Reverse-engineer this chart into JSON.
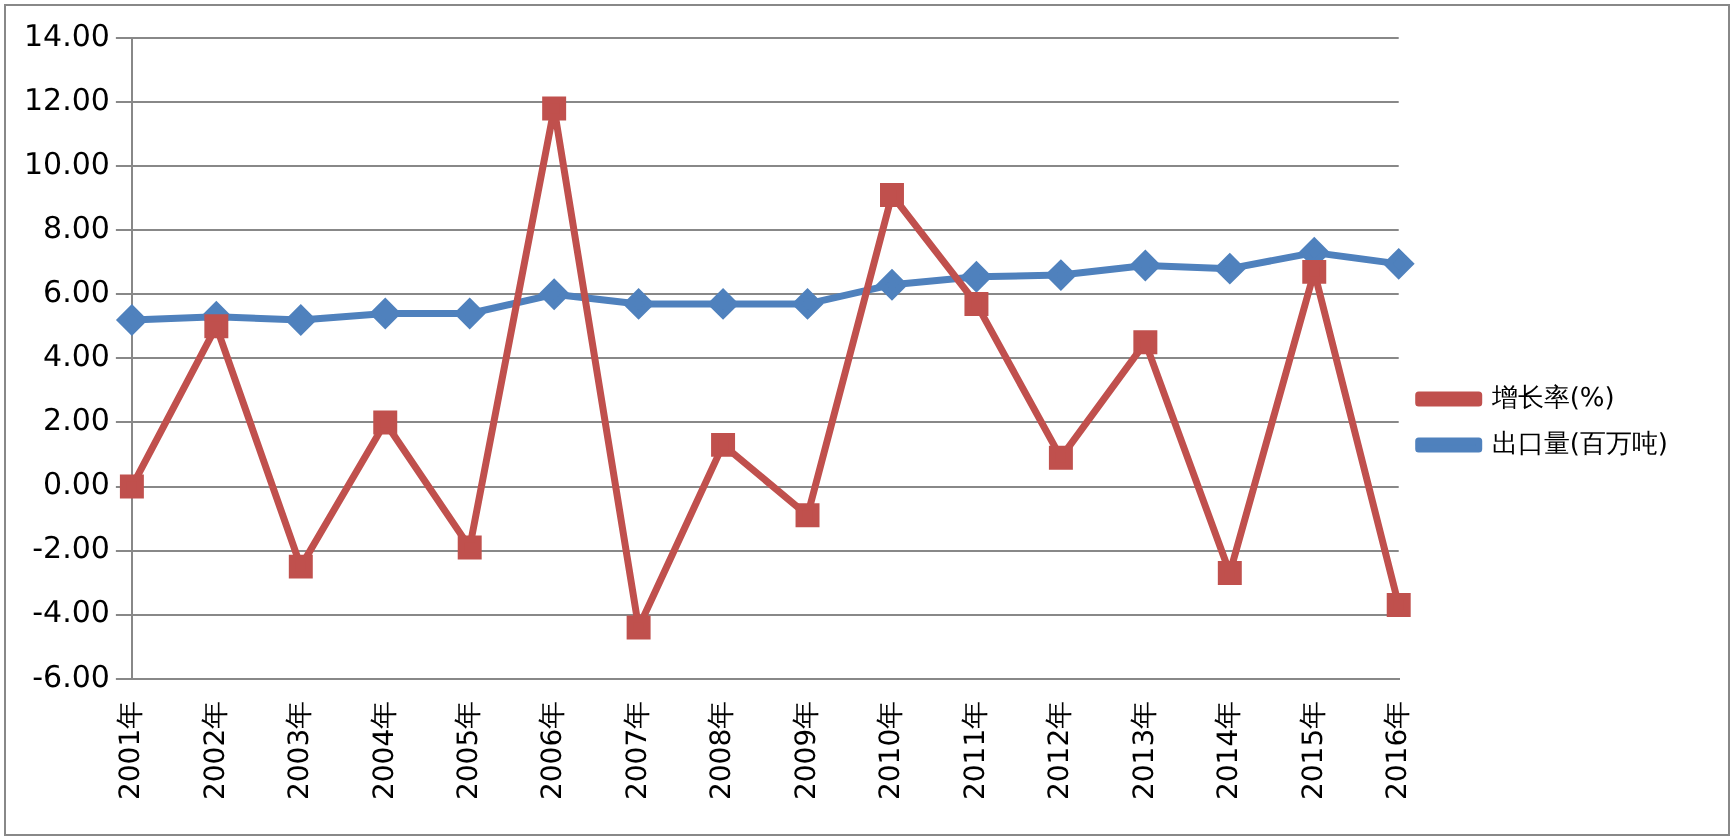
{
  "chart_data": {
    "type": "line",
    "categories": [
      "2001年",
      "2002年",
      "2003年",
      "2004年",
      "2005年",
      "2006年",
      "2007年",
      "2008年",
      "2009年",
      "2010年",
      "2011年",
      "2012年",
      "2013年",
      "2014年",
      "2015年",
      "2016年"
    ],
    "series": [
      {
        "name": "出口量(百万吨)",
        "color": "#4f81bd",
        "marker": "diamond",
        "values": [
          5.2,
          5.3,
          5.2,
          5.4,
          5.4,
          6.0,
          5.7,
          5.7,
          5.7,
          6.3,
          6.55,
          6.6,
          6.9,
          6.8,
          7.3,
          6.95
        ]
      },
      {
        "name": "增长率(%)",
        "color": "#c0504d",
        "marker": "square",
        "values": [
          0.0,
          5.0,
          -2.5,
          2.0,
          -1.9,
          11.8,
          -4.4,
          1.3,
          -0.9,
          9.1,
          5.7,
          0.9,
          4.5,
          -2.7,
          6.7,
          -3.7
        ]
      }
    ],
    "ylim": [
      -6,
      14
    ],
    "yticks": [
      {
        "value": -6,
        "label": "-6.00"
      },
      {
        "value": -4,
        "label": "-4.00"
      },
      {
        "value": -2,
        "label": "-2.00"
      },
      {
        "value": 0,
        "label": "0.00"
      },
      {
        "value": 2,
        "label": "2.00"
      },
      {
        "value": 4,
        "label": "4.00"
      },
      {
        "value": 6,
        "label": "6.00"
      },
      {
        "value": 8,
        "label": "8.00"
      },
      {
        "value": 10,
        "label": "10.00"
      },
      {
        "value": 12,
        "label": "12.00"
      },
      {
        "value": 14,
        "label": "14.00"
      }
    ],
    "grid": "y",
    "legend": "right"
  }
}
